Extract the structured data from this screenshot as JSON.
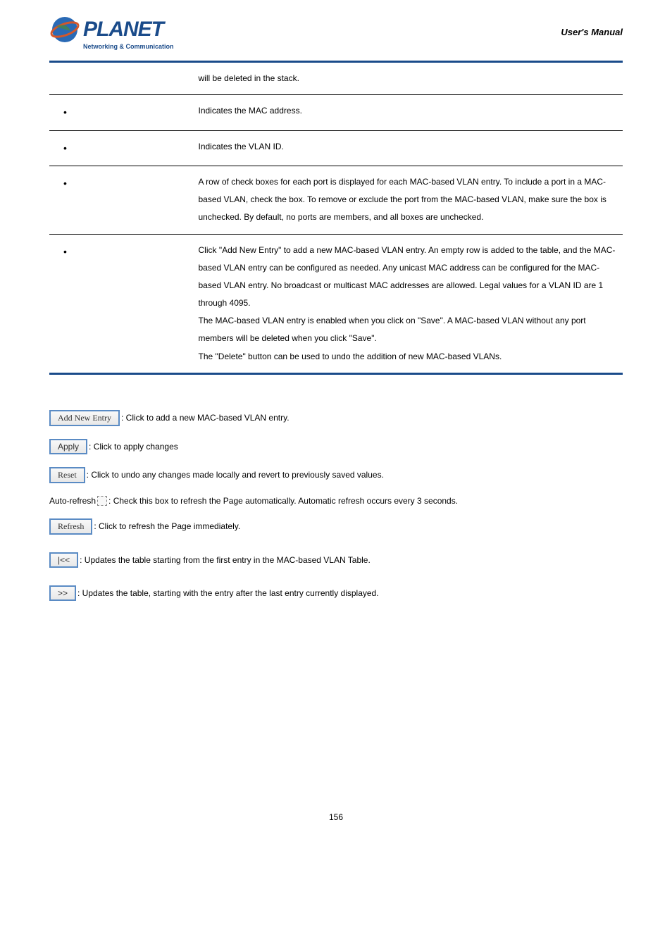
{
  "header": {
    "logo_brand": "PLANET",
    "logo_tagline": "Networking & Communication",
    "manual_title": "User's Manual"
  },
  "table_rows": [
    {
      "left": "",
      "right": "will be deleted in the stack."
    },
    {
      "left": "•",
      "right": "Indicates the MAC address."
    },
    {
      "left": "•",
      "right": "Indicates the VLAN ID."
    },
    {
      "left": "•",
      "right": "A row of check boxes for each port is displayed for each MAC-based VLAN entry. To include a port in a MAC-based VLAN, check the box. To remove or exclude the port from the MAC-based VLAN, make sure the box is unchecked. By default, no ports are members, and all boxes are unchecked."
    },
    {
      "left": "•",
      "right": "Click \"Add New Entry\" to add a new MAC-based VLAN entry. An empty row is added to the table, and the MAC-based VLAN entry can be configured as needed. Any unicast MAC address can be configured for the MAC-based VLAN entry. No broadcast or multicast MAC addresses are allowed. Legal values for a VLAN ID are 1 through 4095.\nThe MAC-based VLAN entry is enabled when you click on \"Save\". A MAC-based VLAN without any port members will be deleted when you click \"Save\".\nThe \"Delete\" button can be used to undo the addition of new MAC-based VLANs."
    }
  ],
  "buttons": {
    "add_new_entry": {
      "label": "Add New Entry",
      "desc": ": Click to add a new MAC-based VLAN entry."
    },
    "apply": {
      "label": "Apply",
      "desc": ": Click to apply changes"
    },
    "reset": {
      "label": "Reset",
      "desc": ": Click to undo any changes made locally and revert to previously saved values."
    },
    "auto_refresh": {
      "prefix": "Auto-refresh ",
      "desc": ": Check this box to refresh the Page automatically. Automatic refresh occurs every 3 seconds."
    },
    "refresh": {
      "label": "Refresh",
      "desc": ": Click to refresh the Page immediately."
    },
    "first": {
      "label": "|<<",
      "desc": ": Updates the table starting from the first entry in the MAC-based VLAN Table."
    },
    "next": {
      "label": ">>",
      "desc": ": Updates the table, starting with the entry after the last entry currently displayed."
    }
  },
  "page_number": "156",
  "colors": {
    "brand_blue": "#1a4b8a",
    "button_border": "#5a8bc4",
    "text": "#000000"
  }
}
